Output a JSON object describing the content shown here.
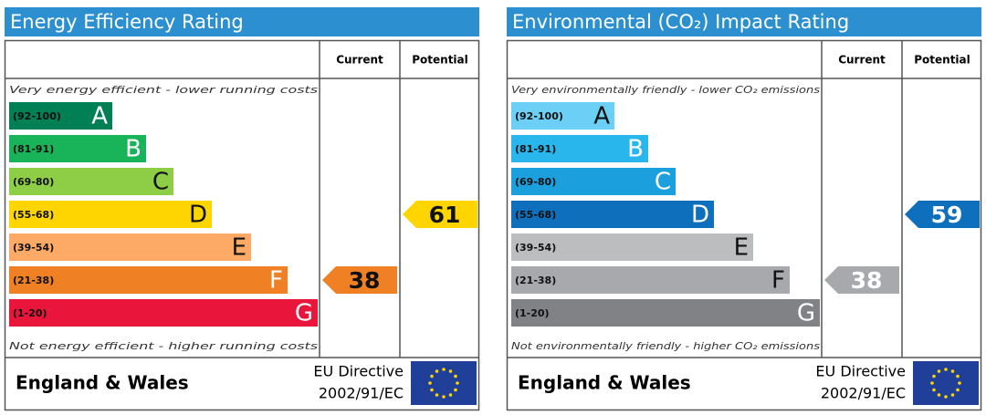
{
  "panels": [
    {
      "title": "Energy Efficiency Rating",
      "columns": [
        "Current",
        "Potential"
      ],
      "top_note": "Very energy efficient - lower running costs",
      "bottom_note": "Not energy efficient - higher running costs",
      "bands": [
        {
          "range": "(92-100)",
          "letter": "A",
          "color": "#008054"
        },
        {
          "range": "(81-91)",
          "letter": "B",
          "color": "#19b459"
        },
        {
          "range": "(69-80)",
          "letter": "C",
          "color": "#8dce46"
        },
        {
          "range": "(55-68)",
          "letter": "D",
          "color": "#ffd500"
        },
        {
          "range": "(39-54)",
          "letter": "E",
          "color": "#fcaa65"
        },
        {
          "range": "(21-38)",
          "letter": "F",
          "color": "#ef8023"
        },
        {
          "range": "(1-20)",
          "letter": "G",
          "color": "#e9153b"
        }
      ],
      "current": "38",
      "potential": "61",
      "region": "England & Wales",
      "directive": [
        "EU Directive",
        "2002/91/EC"
      ]
    },
    {
      "title": "Environmental (CO₂) Impact Rating",
      "columns": [
        "Current",
        "Potential"
      ],
      "top_note": "Very environmentally friendly - lower CO₂ emissions",
      "bottom_note": "Not environmentally friendly - higher CO₂ emissions",
      "bands": [
        {
          "range": "(92-100)",
          "letter": "A",
          "color": "#6ccff6"
        },
        {
          "range": "(81-91)",
          "letter": "B",
          "color": "#29b6ec"
        },
        {
          "range": "(69-80)",
          "letter": "C",
          "color": "#1ca0dd"
        },
        {
          "range": "(55-68)",
          "letter": "D",
          "color": "#0e70bd"
        },
        {
          "range": "(39-54)",
          "letter": "E",
          "color": "#bbbdbf"
        },
        {
          "range": "(21-38)",
          "letter": "F",
          "color": "#a7a9ac"
        },
        {
          "range": "(1-20)",
          "letter": "G",
          "color": "#808285"
        }
      ],
      "current": "38",
      "potential": "59",
      "region": "England & Wales",
      "directive": [
        "EU Directive",
        "2002/91/EC"
      ]
    }
  ]
}
